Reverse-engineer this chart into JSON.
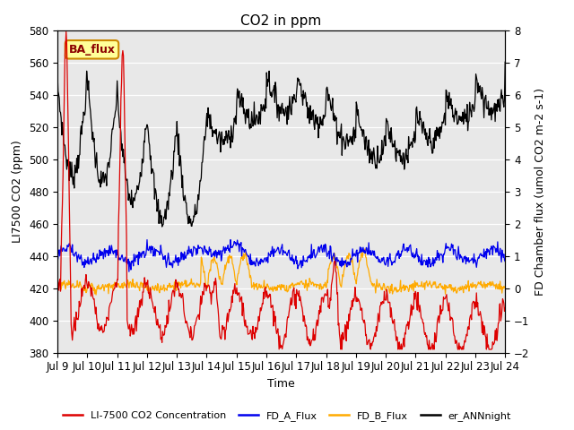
{
  "title": "CO2 in ppm",
  "ylabel_left": "LI7500 CO2 (ppm)",
  "ylabel_right": "FD Chamber flux (umol CO2 m-2 s-1)",
  "xlabel": "Time",
  "ylim_left": [
    380,
    580
  ],
  "ylim_right": [
    -2.0,
    8.0
  ],
  "yticks_left": [
    380,
    400,
    420,
    440,
    460,
    480,
    500,
    520,
    540,
    560,
    580
  ],
  "yticks_right": [
    -2.0,
    -1.0,
    0.0,
    1.0,
    2.0,
    3.0,
    4.0,
    5.0,
    6.0,
    7.0,
    8.0
  ],
  "xlim": [
    0,
    15
  ],
  "tick_positions": [
    0,
    1,
    2,
    3,
    4,
    5,
    6,
    7,
    8,
    9,
    10,
    11,
    12,
    13,
    14,
    15
  ],
  "tick_labels": [
    "Jul 9",
    "Jul 10",
    "Jul 11",
    "Jul 12",
    "Jul 13",
    "Jul 14",
    "Jul 15",
    "Jul 16",
    "Jul 17",
    "Jul 18",
    "Jul 19",
    "Jul 20",
    "Jul 21",
    "Jul 22",
    "Jul 23",
    "Jul 24"
  ],
  "color_co2": "#dd0000",
  "color_fd_a": "#0000ee",
  "color_fd_b": "#ffaa00",
  "color_er": "#000000",
  "legend_labels": [
    "LI-7500 CO2 Concentration",
    "FD_A_Flux",
    "FD_B_Flux",
    "er_ANNnight"
  ],
  "annotation_text": "BA_flux",
  "bg_color": "#e8e8e8",
  "linewidth": 0.9,
  "title_fontsize": 11,
  "label_fontsize": 9,
  "tick_fontsize": 8.5
}
